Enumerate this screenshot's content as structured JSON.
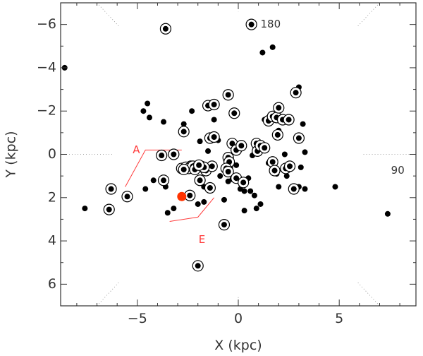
{
  "chart_data": {
    "type": "scatter",
    "xlabel": "X (kpc)",
    "ylabel": "Y (kpc)",
    "xlim": [
      -8.8,
      8.8
    ],
    "ylim": [
      -7,
      7
    ],
    "y_inverted": true,
    "x_ticks": [
      -5,
      0,
      5
    ],
    "x_tick_labels": [
      "−5",
      "0",
      "5"
    ],
    "y_ticks": [
      -6,
      -4,
      -2,
      0,
      2,
      4,
      6
    ],
    "y_tick_labels": [
      "−6",
      "−4",
      "−2",
      "0",
      "2",
      "4",
      "6"
    ],
    "grid": false,
    "legend": "none",
    "colors": {
      "points": "#000000",
      "sun": "#ff3300",
      "annotations": "#ff3b3b",
      "guides": "#888888",
      "axes": "#333333"
    },
    "annotations": [
      {
        "text": "180",
        "x": 1.6,
        "y": -6.0,
        "color": "#333333"
      },
      {
        "text": "90",
        "x": 7.9,
        "y": 0.75,
        "color": "#333333"
      },
      {
        "text": "A",
        "x": -5.05,
        "y": -0.2,
        "color": "#ff3b3b"
      },
      {
        "text": "E",
        "x": -1.8,
        "y": 3.95,
        "color": "#ff3b3b"
      }
    ],
    "arm_lines": [
      {
        "label": "A",
        "points": [
          [
            -5.6,
            1.5
          ],
          [
            -4.6,
            -0.2
          ],
          [
            -2.8,
            -0.2
          ]
        ]
      },
      {
        "label": "E",
        "points": [
          [
            -3.4,
            3.1
          ],
          [
            -2.0,
            2.9
          ],
          [
            -1.2,
            2.0
          ]
        ]
      }
    ],
    "sun": {
      "x": -2.8,
      "y": 1.95
    },
    "series": [
      {
        "marker": "filled-dot",
        "points": [
          [
            -8.6,
            -4.0
          ],
          [
            -7.6,
            2.5
          ],
          [
            -4.6,
            1.6
          ],
          [
            -4.4,
            -1.7
          ],
          [
            -4.5,
            -2.35
          ],
          [
            -4.7,
            -2.0
          ],
          [
            -4.2,
            1.2
          ],
          [
            -3.6,
            1.5
          ],
          [
            -3.5,
            2.7
          ],
          [
            -3.2,
            2.5
          ],
          [
            -3.7,
            -1.5
          ],
          [
            -2.7,
            -1.4
          ],
          [
            -2.5,
            1.9
          ],
          [
            -2.3,
            -2.0
          ],
          [
            -1.9,
            -0.6
          ],
          [
            -1.5,
            -0.15
          ],
          [
            -2.0,
            2.3
          ],
          [
            -1.7,
            1.5
          ],
          [
            -1.2,
            -1.6
          ],
          [
            -1.0,
            -0.65
          ],
          [
            -1.7,
            2.2
          ],
          [
            -0.9,
            1.0
          ],
          [
            -0.5,
            1.25
          ],
          [
            -0.3,
            1.15
          ],
          [
            -0.7,
            2.1
          ],
          [
            -0.4,
            0.6
          ],
          [
            -0.6,
            0.3
          ],
          [
            -0.1,
            0.5
          ],
          [
            0.2,
            1.4
          ],
          [
            0.1,
            1.6
          ],
          [
            0.3,
            1.7
          ],
          [
            0.5,
            1.1
          ],
          [
            0.6,
            1.7
          ],
          [
            0.8,
            1.9
          ],
          [
            0.9,
            2.5
          ],
          [
            0.3,
            2.6
          ],
          [
            1.1,
            2.3
          ],
          [
            1.2,
            -4.7
          ],
          [
            1.7,
            -4.95
          ],
          [
            1.3,
            -1.6
          ],
          [
            2.0,
            -1.1
          ],
          [
            2.3,
            0.0
          ],
          [
            2.5,
            0.5
          ],
          [
            2.2,
            0.7
          ],
          [
            1.9,
            0.9
          ],
          [
            2.4,
            1.0
          ],
          [
            3.0,
            1.5
          ],
          [
            3.3,
            1.6
          ],
          [
            3.1,
            0.6
          ],
          [
            3.0,
            -3.1
          ],
          [
            3.2,
            -1.4
          ],
          [
            3.3,
            -0.1
          ],
          [
            4.8,
            1.5
          ],
          [
            7.4,
            2.75
          ],
          [
            2.0,
            1.5
          ],
          [
            1.5,
            0.4
          ],
          [
            0.7,
            0.05
          ],
          [
            1.0,
            -0.3
          ]
        ]
      },
      {
        "marker": "circled-dot",
        "points": [
          [
            -3.6,
            -5.8
          ],
          [
            0.65,
            -6.0
          ],
          [
            -6.3,
            1.6
          ],
          [
            -6.4,
            2.55
          ],
          [
            -5.5,
            1.95
          ],
          [
            -3.7,
            1.2
          ],
          [
            -2.7,
            -1.05
          ],
          [
            -2.4,
            1.9
          ],
          [
            -2.0,
            5.15
          ],
          [
            -0.7,
            3.25
          ],
          [
            -1.9,
            1.2
          ],
          [
            -1.4,
            1.55
          ],
          [
            -1.4,
            -0.75
          ],
          [
            -1.2,
            -0.8
          ],
          [
            -1.5,
            -2.25
          ],
          [
            -1.2,
            -2.3
          ],
          [
            -0.5,
            -2.75
          ],
          [
            -0.2,
            -1.9
          ],
          [
            -0.3,
            -0.5
          ],
          [
            -0.5,
            0.15
          ],
          [
            -0.45,
            0.35
          ],
          [
            -0.6,
            0.65
          ],
          [
            -0.5,
            0.8
          ],
          [
            -0.1,
            1.1
          ],
          [
            0.25,
            1.3
          ],
          [
            -0.1,
            -0.2
          ],
          [
            0.15,
            -0.4
          ],
          [
            -1.6,
            0.75
          ],
          [
            -1.3,
            0.55
          ],
          [
            -2.3,
            0.6
          ],
          [
            -2.35,
            0.55
          ],
          [
            0.9,
            -0.5
          ],
          [
            0.95,
            -0.15
          ],
          [
            1.1,
            -0.4
          ],
          [
            1.3,
            -0.3
          ],
          [
            1.5,
            -1.55
          ],
          [
            1.7,
            -1.75
          ],
          [
            1.9,
            -1.7
          ],
          [
            2.0,
            -2.15
          ],
          [
            2.2,
            -1.6
          ],
          [
            2.5,
            -1.6
          ],
          [
            1.95,
            -0.9
          ],
          [
            2.85,
            -2.85
          ],
          [
            3.0,
            -0.75
          ],
          [
            1.7,
            0.35
          ],
          [
            1.8,
            0.75
          ],
          [
            2.35,
            0.65
          ],
          [
            2.55,
            0.55
          ],
          [
            2.75,
            1.6
          ],
          [
            -3.8,
            0.05
          ],
          [
            -3.2,
            0.0
          ]
        ]
      },
      {
        "marker": "circled-dot-cluster",
        "points": [
          [
            -2.8,
            0.65
          ],
          [
            -2.6,
            0.6
          ],
          [
            -2.45,
            0.65
          ],
          [
            -2.25,
            0.55
          ],
          [
            -2.05,
            0.6
          ],
          [
            -1.85,
            0.55
          ],
          [
            -1.7,
            0.6
          ],
          [
            -2.7,
            0.7
          ],
          [
            -2.15,
            0.7
          ],
          [
            -1.95,
            0.5
          ]
        ]
      }
    ]
  }
}
